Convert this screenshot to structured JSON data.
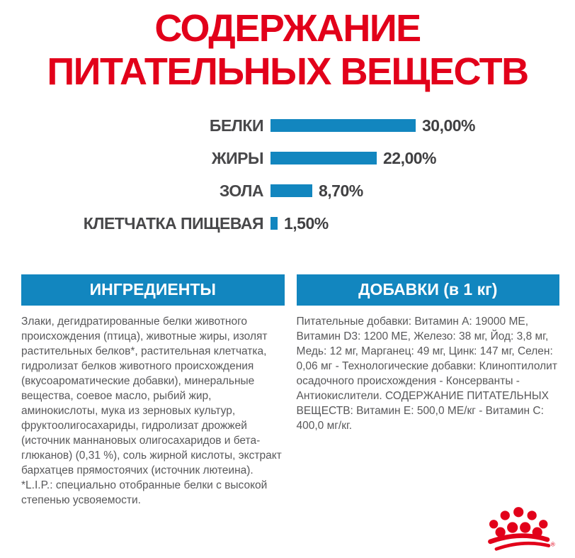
{
  "colors": {
    "accent_red": "#e2001a",
    "accent_blue": "#1286bf",
    "text_gray": "#58585a",
    "background": "#ffffff"
  },
  "title": {
    "text": "СОДЕРЖАНИЕ ПИТАТЕЛЬНЫХ ВЕЩЕСТВ"
  },
  "chart_data": {
    "type": "bar",
    "orientation": "horizontal",
    "title": "СОДЕРЖАНИЕ ПИТАТЕЛЬНЫХ ВЕЩЕСТВ",
    "categories": [
      "БЕЛКИ",
      "ЖИРЫ",
      "ЗОЛА",
      "КЛЕТЧАТКА ПИЩЕВАЯ"
    ],
    "values": [
      30.0,
      22.0,
      8.7,
      1.5
    ],
    "value_labels": [
      "30,00%",
      "22,00%",
      "8,70%",
      "1,50%"
    ],
    "unit": "%",
    "xlim": [
      0,
      30
    ],
    "grid": false,
    "legend": false,
    "bar_color": "#1286bf",
    "label_color": "#48484a"
  },
  "sections": {
    "ingredients": {
      "header": "ИНГРЕДИЕНТЫ",
      "paragraphs": [
        "Злаки, дегидратированные белки животного происхождения (птица), животные жиры, изолят растительных белков*, растительная клетчатка, гидролизат белков животного происхождения (вкусоароматические добавки), минеральные вещества, соевое масло, рыбий жир, аминокислоты, мука из зерновых культур, фруктоолигосахариды, гидролизат дрожжей (источник маннановых олигосахаридов и бета-глюканов) (0,31 %), соль жирной кислоты, экстракт бархатцев прямостоячих (источник лютеина).",
        "*L.I.P.: специально отобранные белки с высокой степенью усвояемости."
      ]
    },
    "additives": {
      "header": "ДОБАВКИ (в 1 кг)",
      "paragraphs": [
        "Питательные добавки: Витамин A: 19000 ME, Витамин D3: 1200 ME, Железо: 38 мг, Йод: 3,8 мг, Медь: 12 мг, Марганец: 49 мг, Цинк: 147 мг, Селен: 0,06 мг - Технологические добавки: Клиноптилолит осадочного происхождения - Консерванты - Антиокислители. СОДЕРЖАНИЕ ПИТАТЕЛЬНЫХ ВЕЩЕСТВ: Витамин E: 500,0 МЕ/кг - Витамин C: 400,0 мг/кг."
      ]
    }
  },
  "logo": {
    "name": "royal-canin-crown",
    "color": "#e2001a",
    "registered_mark": "®"
  }
}
